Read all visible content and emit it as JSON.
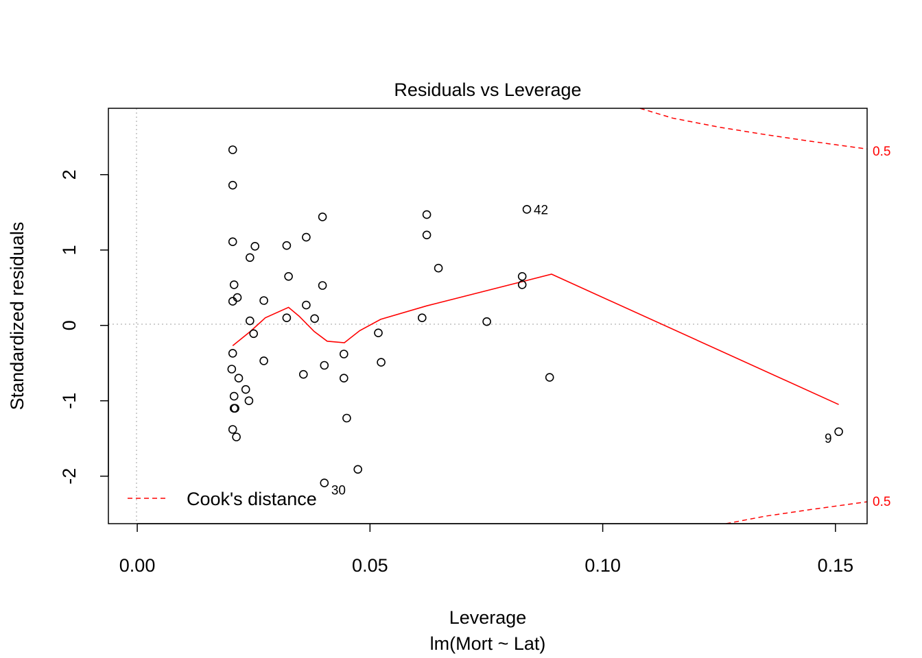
{
  "chart_data": {
    "type": "scatter",
    "title": "Residuals vs Leverage",
    "xlabel": "Leverage",
    "subtitle": "lm(Mort ~ Lat)",
    "ylabel": "Standardized residuals",
    "xlim": [
      -0.0062,
      0.1568
    ],
    "ylim": [
      -2.63,
      2.88
    ],
    "x_ticks": [
      {
        "value": 0.0,
        "label": "0.00"
      },
      {
        "value": 0.05,
        "label": "0.05"
      },
      {
        "value": 0.1,
        "label": "0.10"
      },
      {
        "value": 0.15,
        "label": "0.15"
      }
    ],
    "y_ticks": [
      {
        "value": -2,
        "label": "-2"
      },
      {
        "value": -1,
        "label": "-1"
      },
      {
        "value": 0,
        "label": "0"
      },
      {
        "value": 1,
        "label": "1"
      },
      {
        "value": 2,
        "label": "2"
      }
    ],
    "reference_lines": {
      "x": 0,
      "y": 0
    },
    "points": [
      {
        "x": 0.0205,
        "y": 2.33
      },
      {
        "x": 0.0205,
        "y": 1.86
      },
      {
        "x": 0.0205,
        "y": 1.11
      },
      {
        "x": 0.0208,
        "y": 0.54
      },
      {
        "x": 0.0205,
        "y": 0.32
      },
      {
        "x": 0.0215,
        "y": 0.37
      },
      {
        "x": 0.0205,
        "y": -0.37
      },
      {
        "x": 0.0203,
        "y": -0.58
      },
      {
        "x": 0.0218,
        "y": -0.7
      },
      {
        "x": 0.0208,
        "y": -0.94
      },
      {
        "x": 0.0208,
        "y": -1.1
      },
      {
        "x": 0.021,
        "y": -1.1
      },
      {
        "x": 0.0205,
        "y": -1.38
      },
      {
        "x": 0.0213,
        "y": -1.48
      },
      {
        "x": 0.0233,
        "y": -0.85
      },
      {
        "x": 0.024,
        "y": -1.0
      },
      {
        "x": 0.0242,
        "y": 0.9
      },
      {
        "x": 0.0253,
        "y": 1.05
      },
      {
        "x": 0.0242,
        "y": 0.06
      },
      {
        "x": 0.025,
        "y": -0.11
      },
      {
        "x": 0.0272,
        "y": 0.33
      },
      {
        "x": 0.0272,
        "y": -0.47
      },
      {
        "x": 0.0321,
        "y": 1.06
      },
      {
        "x": 0.0325,
        "y": 0.65
      },
      {
        "x": 0.0321,
        "y": 0.1
      },
      {
        "x": 0.0363,
        "y": 1.17
      },
      {
        "x": 0.0363,
        "y": 0.27
      },
      {
        "x": 0.0357,
        "y": -0.65
      },
      {
        "x": 0.0381,
        "y": 0.09
      },
      {
        "x": 0.0398,
        "y": 1.44
      },
      {
        "x": 0.0398,
        "y": 0.53
      },
      {
        "x": 0.0402,
        "y": -0.53
      },
      {
        "x": 0.0402,
        "y": -2.09,
        "label": "30"
      },
      {
        "x": 0.0444,
        "y": -0.38
      },
      {
        "x": 0.0444,
        "y": -0.7
      },
      {
        "x": 0.045,
        "y": -1.23
      },
      {
        "x": 0.0474,
        "y": -1.91
      },
      {
        "x": 0.0518,
        "y": -0.1
      },
      {
        "x": 0.0524,
        "y": -0.49
      },
      {
        "x": 0.0612,
        "y": 0.1
      },
      {
        "x": 0.0622,
        "y": 1.47
      },
      {
        "x": 0.0622,
        "y": 1.2
      },
      {
        "x": 0.0647,
        "y": 0.76
      },
      {
        "x": 0.0751,
        "y": 0.05
      },
      {
        "x": 0.0827,
        "y": 0.65
      },
      {
        "x": 0.0827,
        "y": 0.54
      },
      {
        "x": 0.0837,
        "y": 1.54,
        "label": "42"
      },
      {
        "x": 0.0886,
        "y": -0.69
      },
      {
        "x": 0.1507,
        "y": -1.41,
        "label": "9"
      }
    ],
    "smooth_line": {
      "color": "#ff0000",
      "x": [
        0.0205,
        0.0243,
        0.0275,
        0.0325,
        0.0348,
        0.038,
        0.0408,
        0.0445,
        0.0478,
        0.0523,
        0.0622,
        0.089,
        0.1507
      ],
      "y": [
        -0.27,
        -0.08,
        0.1,
        0.24,
        0.12,
        -0.08,
        -0.21,
        -0.23,
        -0.07,
        0.08,
        0.26,
        0.68,
        -1.05
      ]
    },
    "cooks_distance": {
      "name": "Cook's distance",
      "color": "#ff0000",
      "level_label": "0.5",
      "upper": {
        "x": [
          0.108,
          0.115,
          0.125,
          0.135,
          0.145,
          0.1568
        ],
        "y": [
          2.88,
          2.75,
          2.63,
          2.53,
          2.44,
          2.34
        ]
      },
      "lower": {
        "x": [
          0.1265,
          0.135,
          0.145,
          0.1568
        ],
        "y": [
          -2.63,
          -2.53,
          -2.44,
          -2.34
        ]
      }
    },
    "legend": {
      "position": "bottom-left",
      "entries": [
        "Cook's distance"
      ]
    }
  }
}
